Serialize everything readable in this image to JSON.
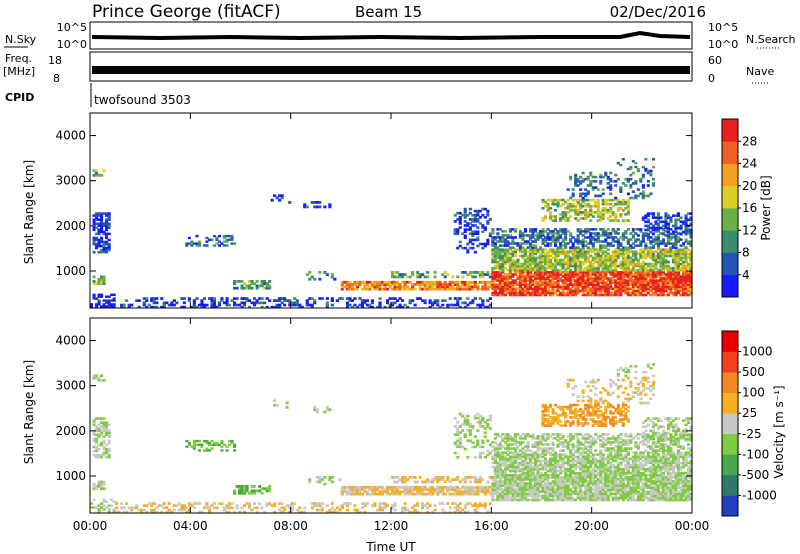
{
  "header": {
    "station": "Prince George (fitACF)",
    "beam": "Beam 15",
    "date": "02/Dec/2016"
  },
  "noise_panel": {
    "left_label": "N.Sky",
    "left_ticks": [
      "10^5",
      "10^0"
    ],
    "right_label": "N.Search",
    "right_ticks": [
      "10^5",
      "10^0"
    ]
  },
  "freq_panel": {
    "left_label_top": "Freq.",
    "left_label_unit": "[MHz]",
    "left_ticks": [
      "18",
      "8"
    ],
    "right_label": "Nave",
    "right_ticks": [
      "60",
      "0"
    ]
  },
  "cpid_panel": {
    "label": "CPID",
    "program": "twofsound 3503"
  },
  "colors": {
    "power_scale": [
      "#1a1aff",
      "#2454b8",
      "#3a8c6a",
      "#6ab04a",
      "#d8d020",
      "#f4a020",
      "#f06020",
      "#e82020"
    ],
    "velocity_scale": [
      "#2040c0",
      "#2e7a6a",
      "#4aa84a",
      "#80cc40",
      "#c8c8c8",
      "#f4b020",
      "#f08a20",
      "#f04020",
      "#e80000"
    ]
  },
  "chart_data": [
    {
      "type": "heatmap",
      "title": "",
      "xlabel": "",
      "ylabel": "Slant Range [km]",
      "x_ticks": [
        "00:00",
        "04:00",
        "08:00",
        "12:00",
        "16:00",
        "20:00",
        "00:00"
      ],
      "xlim_hours": [
        0,
        24
      ],
      "ylim_km": [
        180,
        4500
      ],
      "y_ticks": [
        1000,
        2000,
        3000,
        4000
      ],
      "colorbar": {
        "label": "Power [dB]",
        "ticks": [
          "28",
          "24",
          "20",
          "16",
          "12",
          "8",
          "4"
        ],
        "range": [
          0,
          30
        ]
      }
    },
    {
      "type": "heatmap",
      "title": "",
      "xlabel": "Time UT",
      "ylabel": "Slant Range [km]",
      "x_ticks": [
        "00:00",
        "04:00",
        "08:00",
        "12:00",
        "16:00",
        "20:00",
        "00:00"
      ],
      "xlim_hours": [
        0,
        24
      ],
      "ylim_km": [
        180,
        4500
      ],
      "y_ticks": [
        1000,
        2000,
        3000,
        4000
      ],
      "colorbar": {
        "label": "Velocity [m s⁻¹]",
        "ticks": [
          "1000",
          "500",
          "100",
          "25",
          "-25",
          "-100",
          "-500",
          "-1000"
        ],
        "range": [
          -1000,
          1000
        ]
      }
    }
  ]
}
